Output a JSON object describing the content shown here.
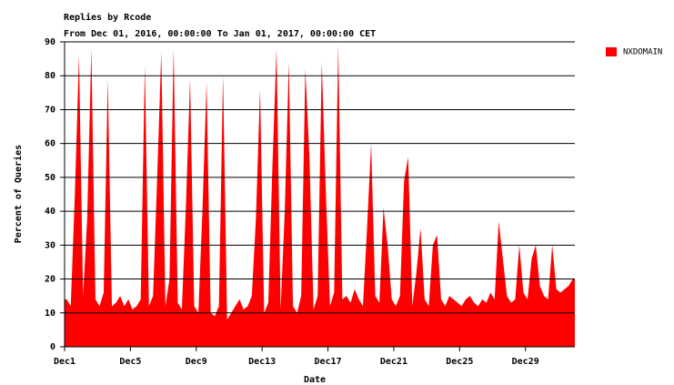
{
  "chart_data": {
    "type": "area",
    "title": "Replies by Rcode",
    "subtitle": "From Dec 01, 2016, 00:00:00 To Jan 01, 2017, 00:00:00 CET",
    "x_label": "Date",
    "y_label": "Percent of Queries",
    "categories": [
      "Dec1",
      null,
      null,
      null,
      null,
      null,
      null,
      null,
      null,
      null,
      null,
      null,
      null,
      null,
      null,
      null,
      "Dec5",
      null,
      null,
      null,
      null,
      null,
      null,
      null,
      null,
      null,
      null,
      null,
      null,
      null,
      null,
      null,
      "Dec9",
      null,
      null,
      null,
      null,
      null,
      null,
      null,
      null,
      null,
      null,
      null,
      null,
      null,
      null,
      null,
      "Dec13",
      null,
      null,
      null,
      null,
      null,
      null,
      null,
      null,
      null,
      null,
      null,
      null,
      null,
      null,
      null,
      "Dec17",
      null,
      null,
      null,
      null,
      null,
      null,
      null,
      null,
      null,
      null,
      null,
      null,
      null,
      null,
      null,
      "Dec21",
      null,
      null,
      null,
      null,
      null,
      null,
      null,
      null,
      null,
      null,
      null,
      null,
      null,
      null,
      null,
      "Dec25",
      null,
      null,
      null,
      null,
      null,
      null,
      null,
      null,
      null,
      null,
      null,
      null,
      null,
      null,
      null,
      "Dec29",
      null,
      null,
      null,
      null,
      null,
      null,
      null,
      null,
      null,
      null,
      null
    ],
    "series": [
      {
        "name": "NXDOMAIN",
        "color": "#ff0000",
        "values": [
          14,
          12,
          45,
          86,
          15,
          38,
          88,
          14,
          12,
          16,
          79,
          12,
          13,
          15,
          12,
          14,
          11,
          12,
          14,
          83,
          12,
          15,
          50,
          87,
          12,
          20,
          88,
          13,
          11,
          42,
          79,
          12,
          10,
          40,
          78,
          10,
          9,
          12,
          80,
          8,
          10,
          12,
          14,
          11,
          12,
          15,
          38,
          76,
          10,
          13,
          53,
          88,
          11,
          40,
          84,
          12,
          10,
          15,
          82,
          56,
          11,
          15,
          84,
          45,
          12,
          16,
          89,
          14,
          15,
          13,
          17,
          14,
          12,
          35,
          60,
          15,
          13,
          41,
          30,
          14,
          12,
          15,
          49,
          56,
          12,
          22,
          35,
          14,
          12,
          30,
          33,
          14,
          12,
          15,
          14,
          13,
          12,
          14,
          15,
          13,
          12,
          14,
          13,
          16,
          14,
          37,
          26,
          15,
          13,
          14,
          30,
          16,
          14,
          26,
          30,
          18,
          15,
          14,
          30,
          17,
          16,
          17,
          18,
          20
        ]
      }
    ],
    "ylim": [
      0,
      90
    ],
    "yticks": [
      0,
      10,
      20,
      30,
      40,
      50,
      60,
      70,
      80,
      90
    ],
    "grid": true,
    "legend": "right"
  }
}
